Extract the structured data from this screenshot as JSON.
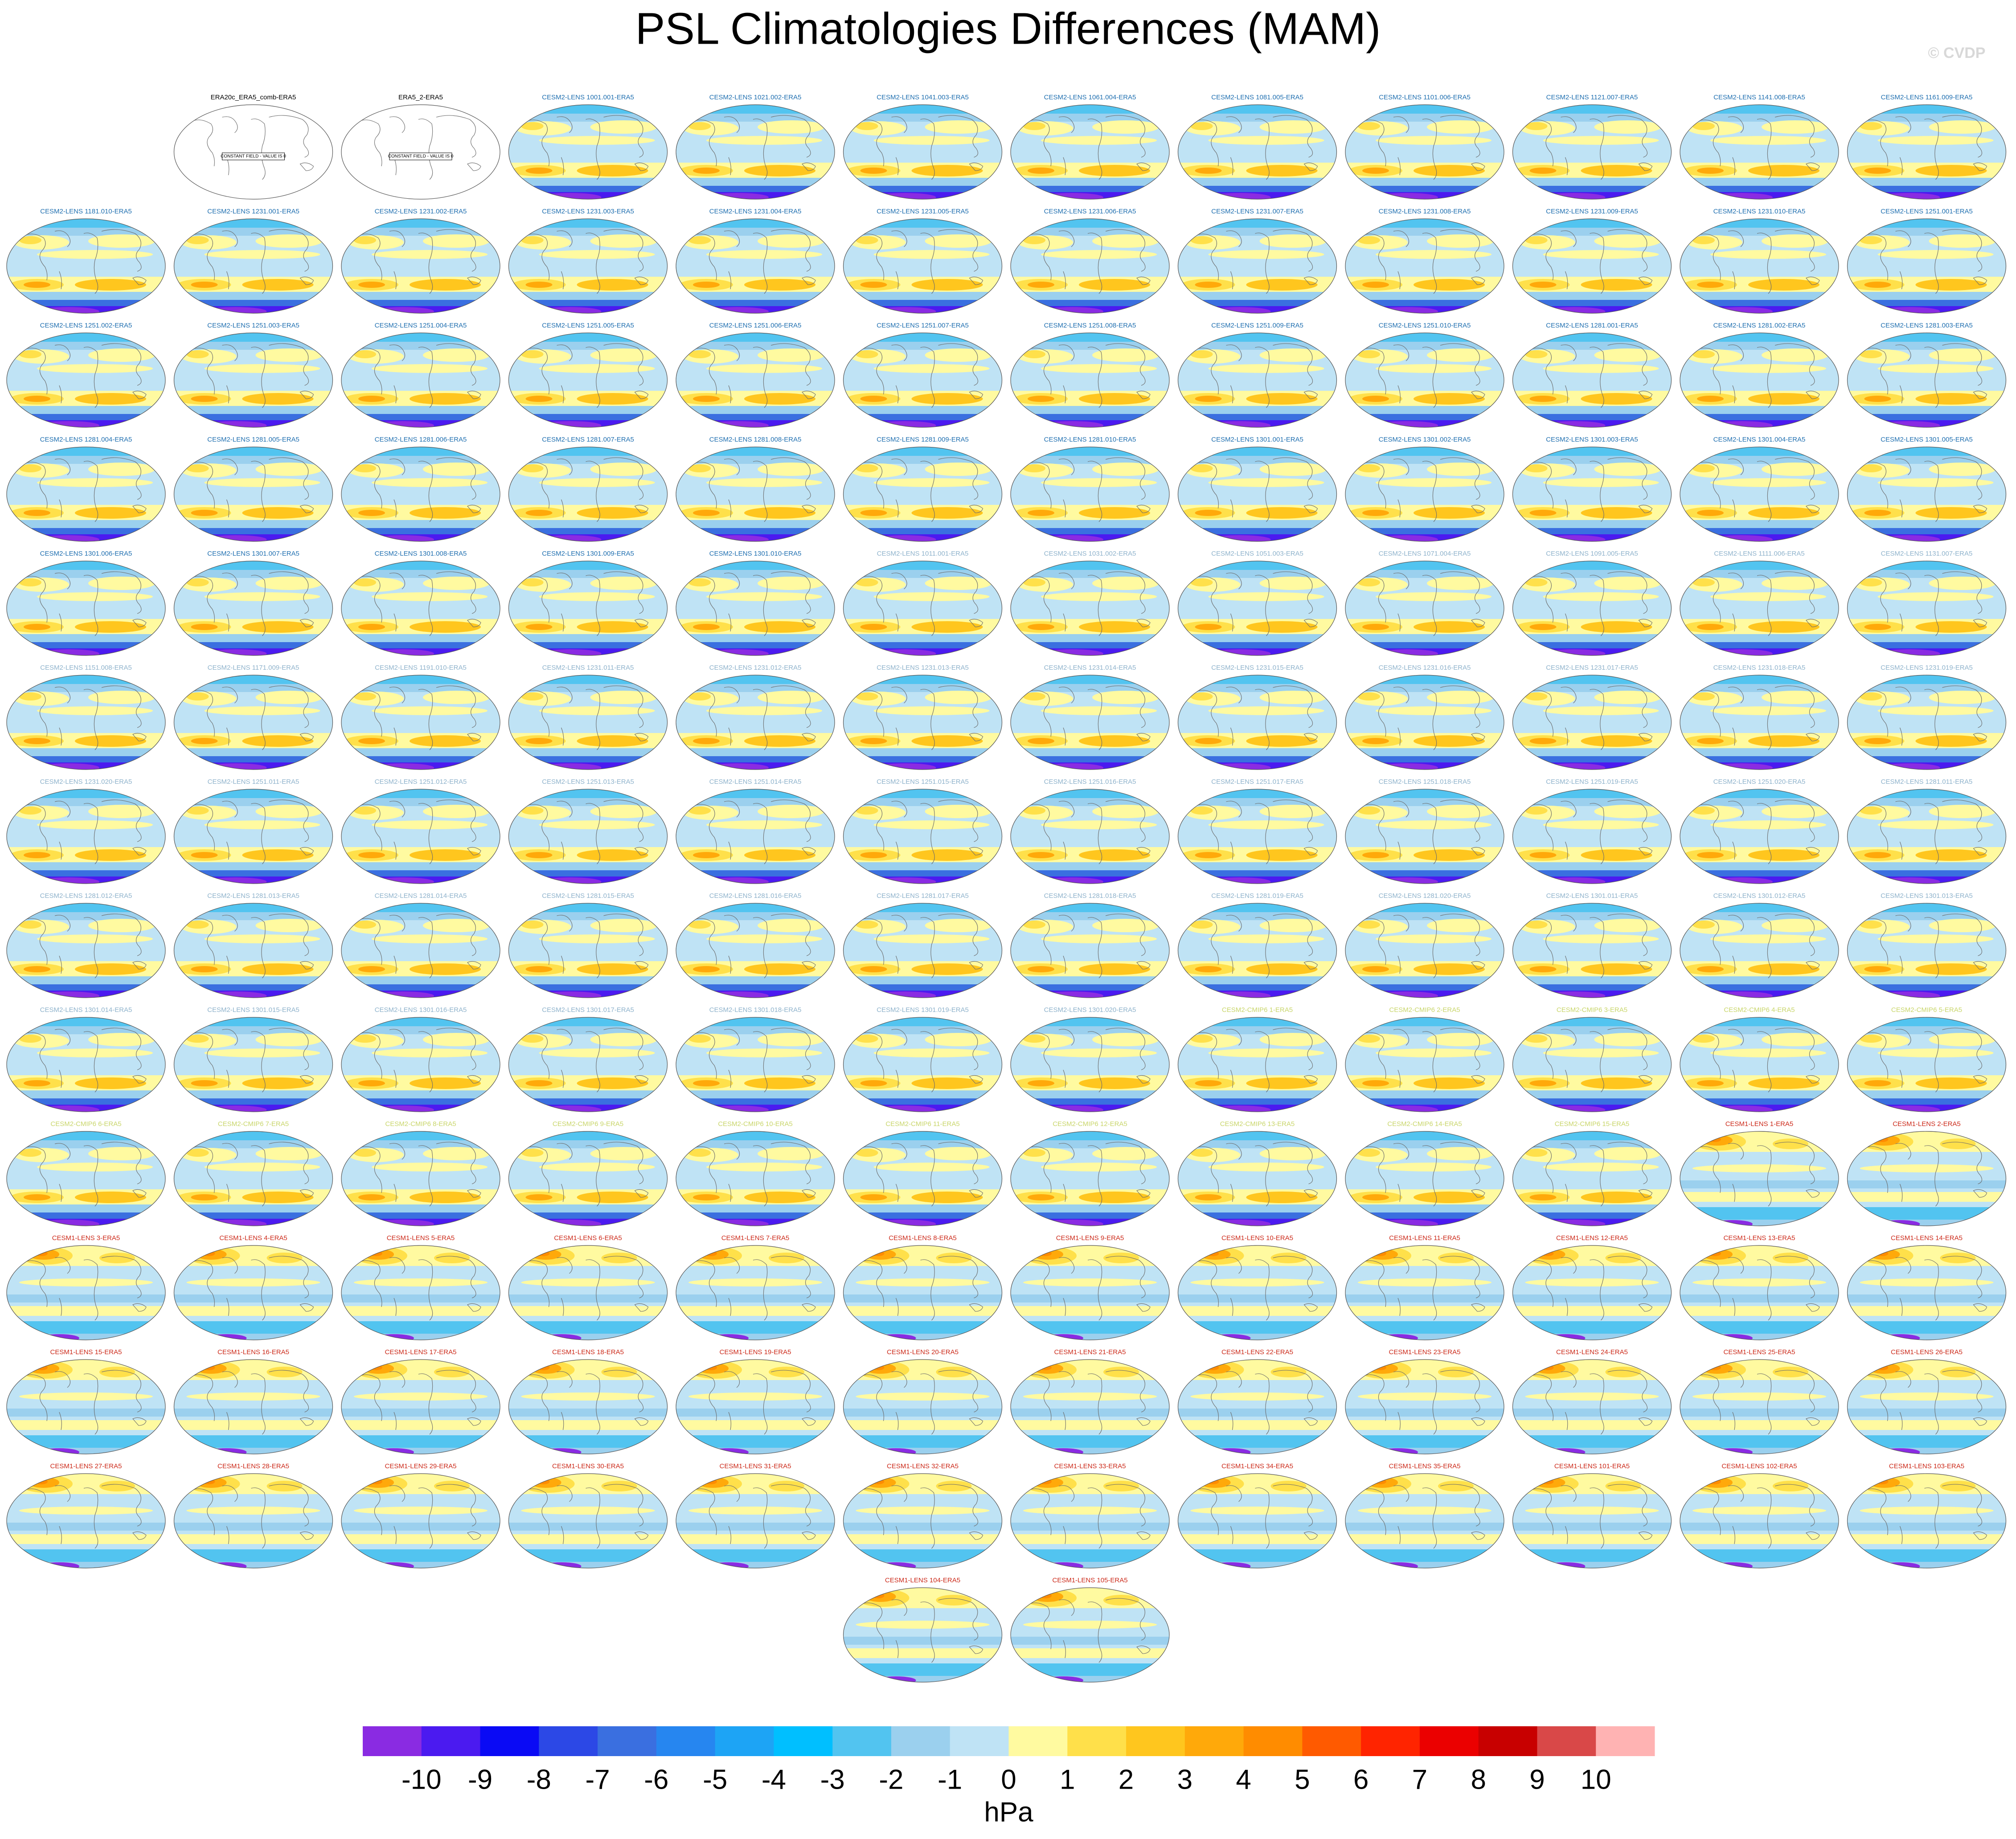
{
  "title": "PSL Climatologies Differences (MAM)",
  "credit": "© CVDP",
  "panels": [
    {
      "title": "ERA20c_ERA5_comb-ERA5",
      "color": "#000000",
      "style": "blank",
      "note": "CONSTANT FIELD - VALUE IS 0"
    },
    {
      "title": "ERA5_2-ERA5",
      "color": "#000000",
      "style": "blank",
      "note": "CONSTANT FIELD - VALUE IS 0"
    },
    {
      "title": "CESM2-LENS 1001.001-ERA5",
      "color": "#1f6fb0",
      "style": "lens2"
    },
    {
      "title": "CESM2-LENS 1021.002-ERA5",
      "color": "#1f6fb0",
      "style": "lens2"
    },
    {
      "title": "CESM2-LENS 1041.003-ERA5",
      "color": "#1f6fb0",
      "style": "lens2"
    },
    {
      "title": "CESM2-LENS 1061.004-ERA5",
      "color": "#1f6fb0",
      "style": "lens2"
    },
    {
      "title": "CESM2-LENS 1081.005-ERA5",
      "color": "#1f6fb0",
      "style": "lens2"
    },
    {
      "title": "CESM2-LENS 1101.006-ERA5",
      "color": "#1f6fb0",
      "style": "lens2"
    },
    {
      "title": "CESM2-LENS 1121.007-ERA5",
      "color": "#1f6fb0",
      "style": "lens2"
    },
    {
      "title": "CESM2-LENS 1141.008-ERA5",
      "color": "#1f6fb0",
      "style": "lens2"
    },
    {
      "title": "CESM2-LENS 1161.009-ERA5",
      "color": "#1f6fb0",
      "style": "lens2"
    },
    {
      "title": "CESM2-LENS 1181.010-ERA5",
      "color": "#1f6fb0",
      "style": "lens2"
    },
    {
      "title": "CESM2-LENS 1231.001-ERA5",
      "color": "#1f6fb0",
      "style": "lens2"
    },
    {
      "title": "CESM2-LENS 1231.002-ERA5",
      "color": "#1f6fb0",
      "style": "lens2"
    },
    {
      "title": "CESM2-LENS 1231.003-ERA5",
      "color": "#1f6fb0",
      "style": "lens2"
    },
    {
      "title": "CESM2-LENS 1231.004-ERA5",
      "color": "#1f6fb0",
      "style": "lens2"
    },
    {
      "title": "CESM2-LENS 1231.005-ERA5",
      "color": "#1f6fb0",
      "style": "lens2"
    },
    {
      "title": "CESM2-LENS 1231.006-ERA5",
      "color": "#1f6fb0",
      "style": "lens2"
    },
    {
      "title": "CESM2-LENS 1231.007-ERA5",
      "color": "#1f6fb0",
      "style": "lens2"
    },
    {
      "title": "CESM2-LENS 1231.008-ERA5",
      "color": "#1f6fb0",
      "style": "lens2"
    },
    {
      "title": "CESM2-LENS 1231.009-ERA5",
      "color": "#1f6fb0",
      "style": "lens2"
    },
    {
      "title": "CESM2-LENS 1231.010-ERA5",
      "color": "#1f6fb0",
      "style": "lens2"
    },
    {
      "title": "CESM2-LENS 1251.001-ERA5",
      "color": "#1f6fb0",
      "style": "lens2"
    },
    {
      "title": "CESM2-LENS 1251.002-ERA5",
      "color": "#1f6fb0",
      "style": "lens2"
    },
    {
      "title": "CESM2-LENS 1251.003-ERA5",
      "color": "#1f6fb0",
      "style": "lens2"
    },
    {
      "title": "CESM2-LENS 1251.004-ERA5",
      "color": "#1f6fb0",
      "style": "lens2"
    },
    {
      "title": "CESM2-LENS 1251.005-ERA5",
      "color": "#1f6fb0",
      "style": "lens2"
    },
    {
      "title": "CESM2-LENS 1251.006-ERA5",
      "color": "#1f6fb0",
      "style": "lens2"
    },
    {
      "title": "CESM2-LENS 1251.007-ERA5",
      "color": "#1f6fb0",
      "style": "lens2"
    },
    {
      "title": "CESM2-LENS 1251.008-ERA5",
      "color": "#1f6fb0",
      "style": "lens2"
    },
    {
      "title": "CESM2-LENS 1251.009-ERA5",
      "color": "#1f6fb0",
      "style": "lens2"
    },
    {
      "title": "CESM2-LENS 1251.010-ERA5",
      "color": "#1f6fb0",
      "style": "lens2"
    },
    {
      "title": "CESM2-LENS 1281.001-ERA5",
      "color": "#1f6fb0",
      "style": "lens2"
    },
    {
      "title": "CESM2-LENS 1281.002-ERA5",
      "color": "#1f6fb0",
      "style": "lens2"
    },
    {
      "title": "CESM2-LENS 1281.003-ERA5",
      "color": "#1f6fb0",
      "style": "lens2"
    },
    {
      "title": "CESM2-LENS 1281.004-ERA5",
      "color": "#1f6fb0",
      "style": "lens2"
    },
    {
      "title": "CESM2-LENS 1281.005-ERA5",
      "color": "#1f6fb0",
      "style": "lens2"
    },
    {
      "title": "CESM2-LENS 1281.006-ERA5",
      "color": "#1f6fb0",
      "style": "lens2"
    },
    {
      "title": "CESM2-LENS 1281.007-ERA5",
      "color": "#1f6fb0",
      "style": "lens2"
    },
    {
      "title": "CESM2-LENS 1281.008-ERA5",
      "color": "#1f6fb0",
      "style": "lens2"
    },
    {
      "title": "CESM2-LENS 1281.009-ERA5",
      "color": "#1f6fb0",
      "style": "lens2"
    },
    {
      "title": "CESM2-LENS 1281.010-ERA5",
      "color": "#1f6fb0",
      "style": "lens2"
    },
    {
      "title": "CESM2-LENS 1301.001-ERA5",
      "color": "#1f6fb0",
      "style": "lens2"
    },
    {
      "title": "CESM2-LENS 1301.002-ERA5",
      "color": "#1f6fb0",
      "style": "lens2"
    },
    {
      "title": "CESM2-LENS 1301.003-ERA5",
      "color": "#1f6fb0",
      "style": "lens2"
    },
    {
      "title": "CESM2-LENS 1301.004-ERA5",
      "color": "#1f6fb0",
      "style": "lens2"
    },
    {
      "title": "CESM2-LENS 1301.005-ERA5",
      "color": "#1f6fb0",
      "style": "lens2"
    },
    {
      "title": "CESM2-LENS 1301.006-ERA5",
      "color": "#1f6fb0",
      "style": "lens2"
    },
    {
      "title": "CESM2-LENS 1301.007-ERA5",
      "color": "#1f6fb0",
      "style": "lens2"
    },
    {
      "title": "CESM2-LENS 1301.008-ERA5",
      "color": "#1f6fb0",
      "style": "lens2"
    },
    {
      "title": "CESM2-LENS 1301.009-ERA5",
      "color": "#1f6fb0",
      "style": "lens2"
    },
    {
      "title": "CESM2-LENS 1301.010-ERA5",
      "color": "#1f6fb0",
      "style": "lens2"
    },
    {
      "title": "CESM2-LENS 1011.001-ERA5",
      "color": "#8fb3cc",
      "style": "lens2"
    },
    {
      "title": "CESM2-LENS 1031.002-ERA5",
      "color": "#8fb3cc",
      "style": "lens2"
    },
    {
      "title": "CESM2-LENS 1051.003-ERA5",
      "color": "#8fb3cc",
      "style": "lens2"
    },
    {
      "title": "CESM2-LENS 1071.004-ERA5",
      "color": "#8fb3cc",
      "style": "lens2"
    },
    {
      "title": "CESM2-LENS 1091.005-ERA5",
      "color": "#8fb3cc",
      "style": "lens2"
    },
    {
      "title": "CESM2-LENS 1111.006-ERA5",
      "color": "#8fb3cc",
      "style": "lens2"
    },
    {
      "title": "CESM2-LENS 1131.007-ERA5",
      "color": "#8fb3cc",
      "style": "lens2"
    },
    {
      "title": "CESM2-LENS 1151.008-ERA5",
      "color": "#8fb3cc",
      "style": "lens2"
    },
    {
      "title": "CESM2-LENS 1171.009-ERA5",
      "color": "#8fb3cc",
      "style": "lens2"
    },
    {
      "title": "CESM2-LENS 1191.010-ERA5",
      "color": "#8fb3cc",
      "style": "lens2"
    },
    {
      "title": "CESM2-LENS 1231.011-ERA5",
      "color": "#8fb3cc",
      "style": "lens2"
    },
    {
      "title": "CESM2-LENS 1231.012-ERA5",
      "color": "#8fb3cc",
      "style": "lens2"
    },
    {
      "title": "CESM2-LENS 1231.013-ERA5",
      "color": "#8fb3cc",
      "style": "lens2"
    },
    {
      "title": "CESM2-LENS 1231.014-ERA5",
      "color": "#8fb3cc",
      "style": "lens2"
    },
    {
      "title": "CESM2-LENS 1231.015-ERA5",
      "color": "#8fb3cc",
      "style": "lens2"
    },
    {
      "title": "CESM2-LENS 1231.016-ERA5",
      "color": "#8fb3cc",
      "style": "lens2"
    },
    {
      "title": "CESM2-LENS 1231.017-ERA5",
      "color": "#8fb3cc",
      "style": "lens2"
    },
    {
      "title": "CESM2-LENS 1231.018-ERA5",
      "color": "#8fb3cc",
      "style": "lens2"
    },
    {
      "title": "CESM2-LENS 1231.019-ERA5",
      "color": "#8fb3cc",
      "style": "lens2"
    },
    {
      "title": "CESM2-LENS 1231.020-ERA5",
      "color": "#8fb3cc",
      "style": "lens2"
    },
    {
      "title": "CESM2-LENS 1251.011-ERA5",
      "color": "#8fb3cc",
      "style": "lens2"
    },
    {
      "title": "CESM2-LENS 1251.012-ERA5",
      "color": "#8fb3cc",
      "style": "lens2"
    },
    {
      "title": "CESM2-LENS 1251.013-ERA5",
      "color": "#8fb3cc",
      "style": "lens2"
    },
    {
      "title": "CESM2-LENS 1251.014-ERA5",
      "color": "#8fb3cc",
      "style": "lens2"
    },
    {
      "title": "CESM2-LENS 1251.015-ERA5",
      "color": "#8fb3cc",
      "style": "lens2"
    },
    {
      "title": "CESM2-LENS 1251.016-ERA5",
      "color": "#8fb3cc",
      "style": "lens2"
    },
    {
      "title": "CESM2-LENS 1251.017-ERA5",
      "color": "#8fb3cc",
      "style": "lens2"
    },
    {
      "title": "CESM2-LENS 1251.018-ERA5",
      "color": "#8fb3cc",
      "style": "lens2"
    },
    {
      "title": "CESM2-LENS 1251.019-ERA5",
      "color": "#8fb3cc",
      "style": "lens2"
    },
    {
      "title": "CESM2-LENS 1251.020-ERA5",
      "color": "#8fb3cc",
      "style": "lens2"
    },
    {
      "title": "CESM2-LENS 1281.011-ERA5",
      "color": "#8fb3cc",
      "style": "lens2"
    },
    {
      "title": "CESM2-LENS 1281.012-ERA5",
      "color": "#8fb3cc",
      "style": "lens2"
    },
    {
      "title": "CESM2-LENS 1281.013-ERA5",
      "color": "#8fb3cc",
      "style": "lens2"
    },
    {
      "title": "CESM2-LENS 1281.014-ERA5",
      "color": "#8fb3cc",
      "style": "lens2"
    },
    {
      "title": "CESM2-LENS 1281.015-ERA5",
      "color": "#8fb3cc",
      "style": "lens2"
    },
    {
      "title": "CESM2-LENS 1281.016-ERA5",
      "color": "#8fb3cc",
      "style": "lens2"
    },
    {
      "title": "CESM2-LENS 1281.017-ERA5",
      "color": "#8fb3cc",
      "style": "lens2"
    },
    {
      "title": "CESM2-LENS 1281.018-ERA5",
      "color": "#8fb3cc",
      "style": "lens2"
    },
    {
      "title": "CESM2-LENS 1281.019-ERA5",
      "color": "#8fb3cc",
      "style": "lens2"
    },
    {
      "title": "CESM2-LENS 1281.020-ERA5",
      "color": "#8fb3cc",
      "style": "lens2"
    },
    {
      "title": "CESM2-LENS 1301.011-ERA5",
      "color": "#8fb3cc",
      "style": "lens2"
    },
    {
      "title": "CESM2-LENS 1301.012-ERA5",
      "color": "#8fb3cc",
      "style": "lens2"
    },
    {
      "title": "CESM2-LENS 1301.013-ERA5",
      "color": "#8fb3cc",
      "style": "lens2"
    },
    {
      "title": "CESM2-LENS 1301.014-ERA5",
      "color": "#8fb3cc",
      "style": "lens2"
    },
    {
      "title": "CESM2-LENS 1301.015-ERA5",
      "color": "#8fb3cc",
      "style": "lens2"
    },
    {
      "title": "CESM2-LENS 1301.016-ERA5",
      "color": "#8fb3cc",
      "style": "lens2"
    },
    {
      "title": "CESM2-LENS 1301.017-ERA5",
      "color": "#8fb3cc",
      "style": "lens2"
    },
    {
      "title": "CESM2-LENS 1301.018-ERA5",
      "color": "#8fb3cc",
      "style": "lens2"
    },
    {
      "title": "CESM2-LENS 1301.019-ERA5",
      "color": "#8fb3cc",
      "style": "lens2"
    },
    {
      "title": "CESM2-LENS 1301.020-ERA5",
      "color": "#8fb3cc",
      "style": "lens2"
    },
    {
      "title": "CESM2-CMIP6 1-ERA5",
      "color": "#c9d66b",
      "style": "lens2"
    },
    {
      "title": "CESM2-CMIP6 2-ERA5",
      "color": "#c9d66b",
      "style": "lens2"
    },
    {
      "title": "CESM2-CMIP6 3-ERA5",
      "color": "#c9d66b",
      "style": "lens2"
    },
    {
      "title": "CESM2-CMIP6 4-ERA5",
      "color": "#c9d66b",
      "style": "lens2"
    },
    {
      "title": "CESM2-CMIP6 5-ERA5",
      "color": "#c9d66b",
      "style": "lens2"
    },
    {
      "title": "CESM2-CMIP6 6-ERA5",
      "color": "#c9d66b",
      "style": "lens2"
    },
    {
      "title": "CESM2-CMIP6 7-ERA5",
      "color": "#c9d66b",
      "style": "lens2"
    },
    {
      "title": "CESM2-CMIP6 8-ERA5",
      "color": "#c9d66b",
      "style": "lens2"
    },
    {
      "title": "CESM2-CMIP6 9-ERA5",
      "color": "#c9d66b",
      "style": "lens2"
    },
    {
      "title": "CESM2-CMIP6 10-ERA5",
      "color": "#c9d66b",
      "style": "lens2"
    },
    {
      "title": "CESM2-CMIP6 11-ERA5",
      "color": "#c9d66b",
      "style": "lens2"
    },
    {
      "title": "CESM2-CMIP6 12-ERA5",
      "color": "#c9d66b",
      "style": "lens2"
    },
    {
      "title": "CESM2-CMIP6 13-ERA5",
      "color": "#c9d66b",
      "style": "lens2"
    },
    {
      "title": "CESM2-CMIP6 14-ERA5",
      "color": "#c9d66b",
      "style": "lens2"
    },
    {
      "title": "CESM2-CMIP6 15-ERA5",
      "color": "#c9d66b",
      "style": "lens2"
    },
    {
      "title": "CESM1-LENS 1-ERA5",
      "color": "#cc2a1a",
      "style": "lens1"
    },
    {
      "title": "CESM1-LENS 2-ERA5",
      "color": "#cc2a1a",
      "style": "lens1"
    },
    {
      "title": "CESM1-LENS 3-ERA5",
      "color": "#cc2a1a",
      "style": "lens1"
    },
    {
      "title": "CESM1-LENS 4-ERA5",
      "color": "#cc2a1a",
      "style": "lens1"
    },
    {
      "title": "CESM1-LENS 5-ERA5",
      "color": "#cc2a1a",
      "style": "lens1"
    },
    {
      "title": "CESM1-LENS 6-ERA5",
      "color": "#cc2a1a",
      "style": "lens1"
    },
    {
      "title": "CESM1-LENS 7-ERA5",
      "color": "#cc2a1a",
      "style": "lens1"
    },
    {
      "title": "CESM1-LENS 8-ERA5",
      "color": "#cc2a1a",
      "style": "lens1"
    },
    {
      "title": "CESM1-LENS 9-ERA5",
      "color": "#cc2a1a",
      "style": "lens1"
    },
    {
      "title": "CESM1-LENS 10-ERA5",
      "color": "#cc2a1a",
      "style": "lens1"
    },
    {
      "title": "CESM1-LENS 11-ERA5",
      "color": "#cc2a1a",
      "style": "lens1"
    },
    {
      "title": "CESM1-LENS 12-ERA5",
      "color": "#cc2a1a",
      "style": "lens1"
    },
    {
      "title": "CESM1-LENS 13-ERA5",
      "color": "#cc2a1a",
      "style": "lens1"
    },
    {
      "title": "CESM1-LENS 14-ERA5",
      "color": "#cc2a1a",
      "style": "lens1"
    },
    {
      "title": "CESM1-LENS 15-ERA5",
      "color": "#cc2a1a",
      "style": "lens1"
    },
    {
      "title": "CESM1-LENS 16-ERA5",
      "color": "#cc2a1a",
      "style": "lens1"
    },
    {
      "title": "CESM1-LENS 17-ERA5",
      "color": "#cc2a1a",
      "style": "lens1"
    },
    {
      "title": "CESM1-LENS 18-ERA5",
      "color": "#cc2a1a",
      "style": "lens1"
    },
    {
      "title": "CESM1-LENS 19-ERA5",
      "color": "#cc2a1a",
      "style": "lens1"
    },
    {
      "title": "CESM1-LENS 20-ERA5",
      "color": "#cc2a1a",
      "style": "lens1"
    },
    {
      "title": "CESM1-LENS 21-ERA5",
      "color": "#cc2a1a",
      "style": "lens1"
    },
    {
      "title": "CESM1-LENS 22-ERA5",
      "color": "#cc2a1a",
      "style": "lens1"
    },
    {
      "title": "CESM1-LENS 23-ERA5",
      "color": "#cc2a1a",
      "style": "lens1"
    },
    {
      "title": "CESM1-LENS 24-ERA5",
      "color": "#cc2a1a",
      "style": "lens1"
    },
    {
      "title": "CESM1-LENS 25-ERA5",
      "color": "#cc2a1a",
      "style": "lens1"
    },
    {
      "title": "CESM1-LENS 26-ERA5",
      "color": "#cc2a1a",
      "style": "lens1"
    },
    {
      "title": "CESM1-LENS 27-ERA5",
      "color": "#cc2a1a",
      "style": "lens1"
    },
    {
      "title": "CESM1-LENS 28-ERA5",
      "color": "#cc2a1a",
      "style": "lens1"
    },
    {
      "title": "CESM1-LENS 29-ERA5",
      "color": "#cc2a1a",
      "style": "lens1"
    },
    {
      "title": "CESM1-LENS 30-ERA5",
      "color": "#cc2a1a",
      "style": "lens1"
    },
    {
      "title": "CESM1-LENS 31-ERA5",
      "color": "#cc2a1a",
      "style": "lens1"
    },
    {
      "title": "CESM1-LENS 32-ERA5",
      "color": "#cc2a1a",
      "style": "lens1"
    },
    {
      "title": "CESM1-LENS 33-ERA5",
      "color": "#cc2a1a",
      "style": "lens1"
    },
    {
      "title": "CESM1-LENS 34-ERA5",
      "color": "#cc2a1a",
      "style": "lens1"
    },
    {
      "title": "CESM1-LENS 35-ERA5",
      "color": "#cc2a1a",
      "style": "lens1"
    },
    {
      "title": "CESM1-LENS 101-ERA5",
      "color": "#cc2a1a",
      "style": "lens1"
    },
    {
      "title": "CESM1-LENS 102-ERA5",
      "color": "#cc2a1a",
      "style": "lens1"
    },
    {
      "title": "CESM1-LENS 103-ERA5",
      "color": "#cc2a1a",
      "style": "lens1"
    },
    {
      "title": "CESM1-LENS 104-ERA5",
      "color": "#cc2a1a",
      "style": "lens1"
    },
    {
      "title": "CESM1-LENS 105-ERA5",
      "color": "#cc2a1a",
      "style": "lens1"
    }
  ],
  "colorbar": {
    "levels": [
      -10,
      -9,
      -8,
      -7,
      -6,
      -5,
      -4,
      -3,
      -2,
      -1,
      0,
      1,
      2,
      3,
      4,
      5,
      6,
      7,
      8,
      9,
      10
    ],
    "colors": [
      "#8a2be2",
      "#4b1af0",
      "#0a0af5",
      "#2c48e6",
      "#3a6fe0",
      "#2686f0",
      "#1da4f5",
      "#00bfff",
      "#52c4f0",
      "#9bd0ee",
      "#bfe3f5",
      "#fffaa0",
      "#ffe04a",
      "#ffc61e",
      "#ffa90a",
      "#ff8c00",
      "#ff5a00",
      "#ff2400",
      "#eb0000",
      "#c80000",
      "#d94848",
      "#ffb3b3"
    ],
    "units": "hPa"
  }
}
